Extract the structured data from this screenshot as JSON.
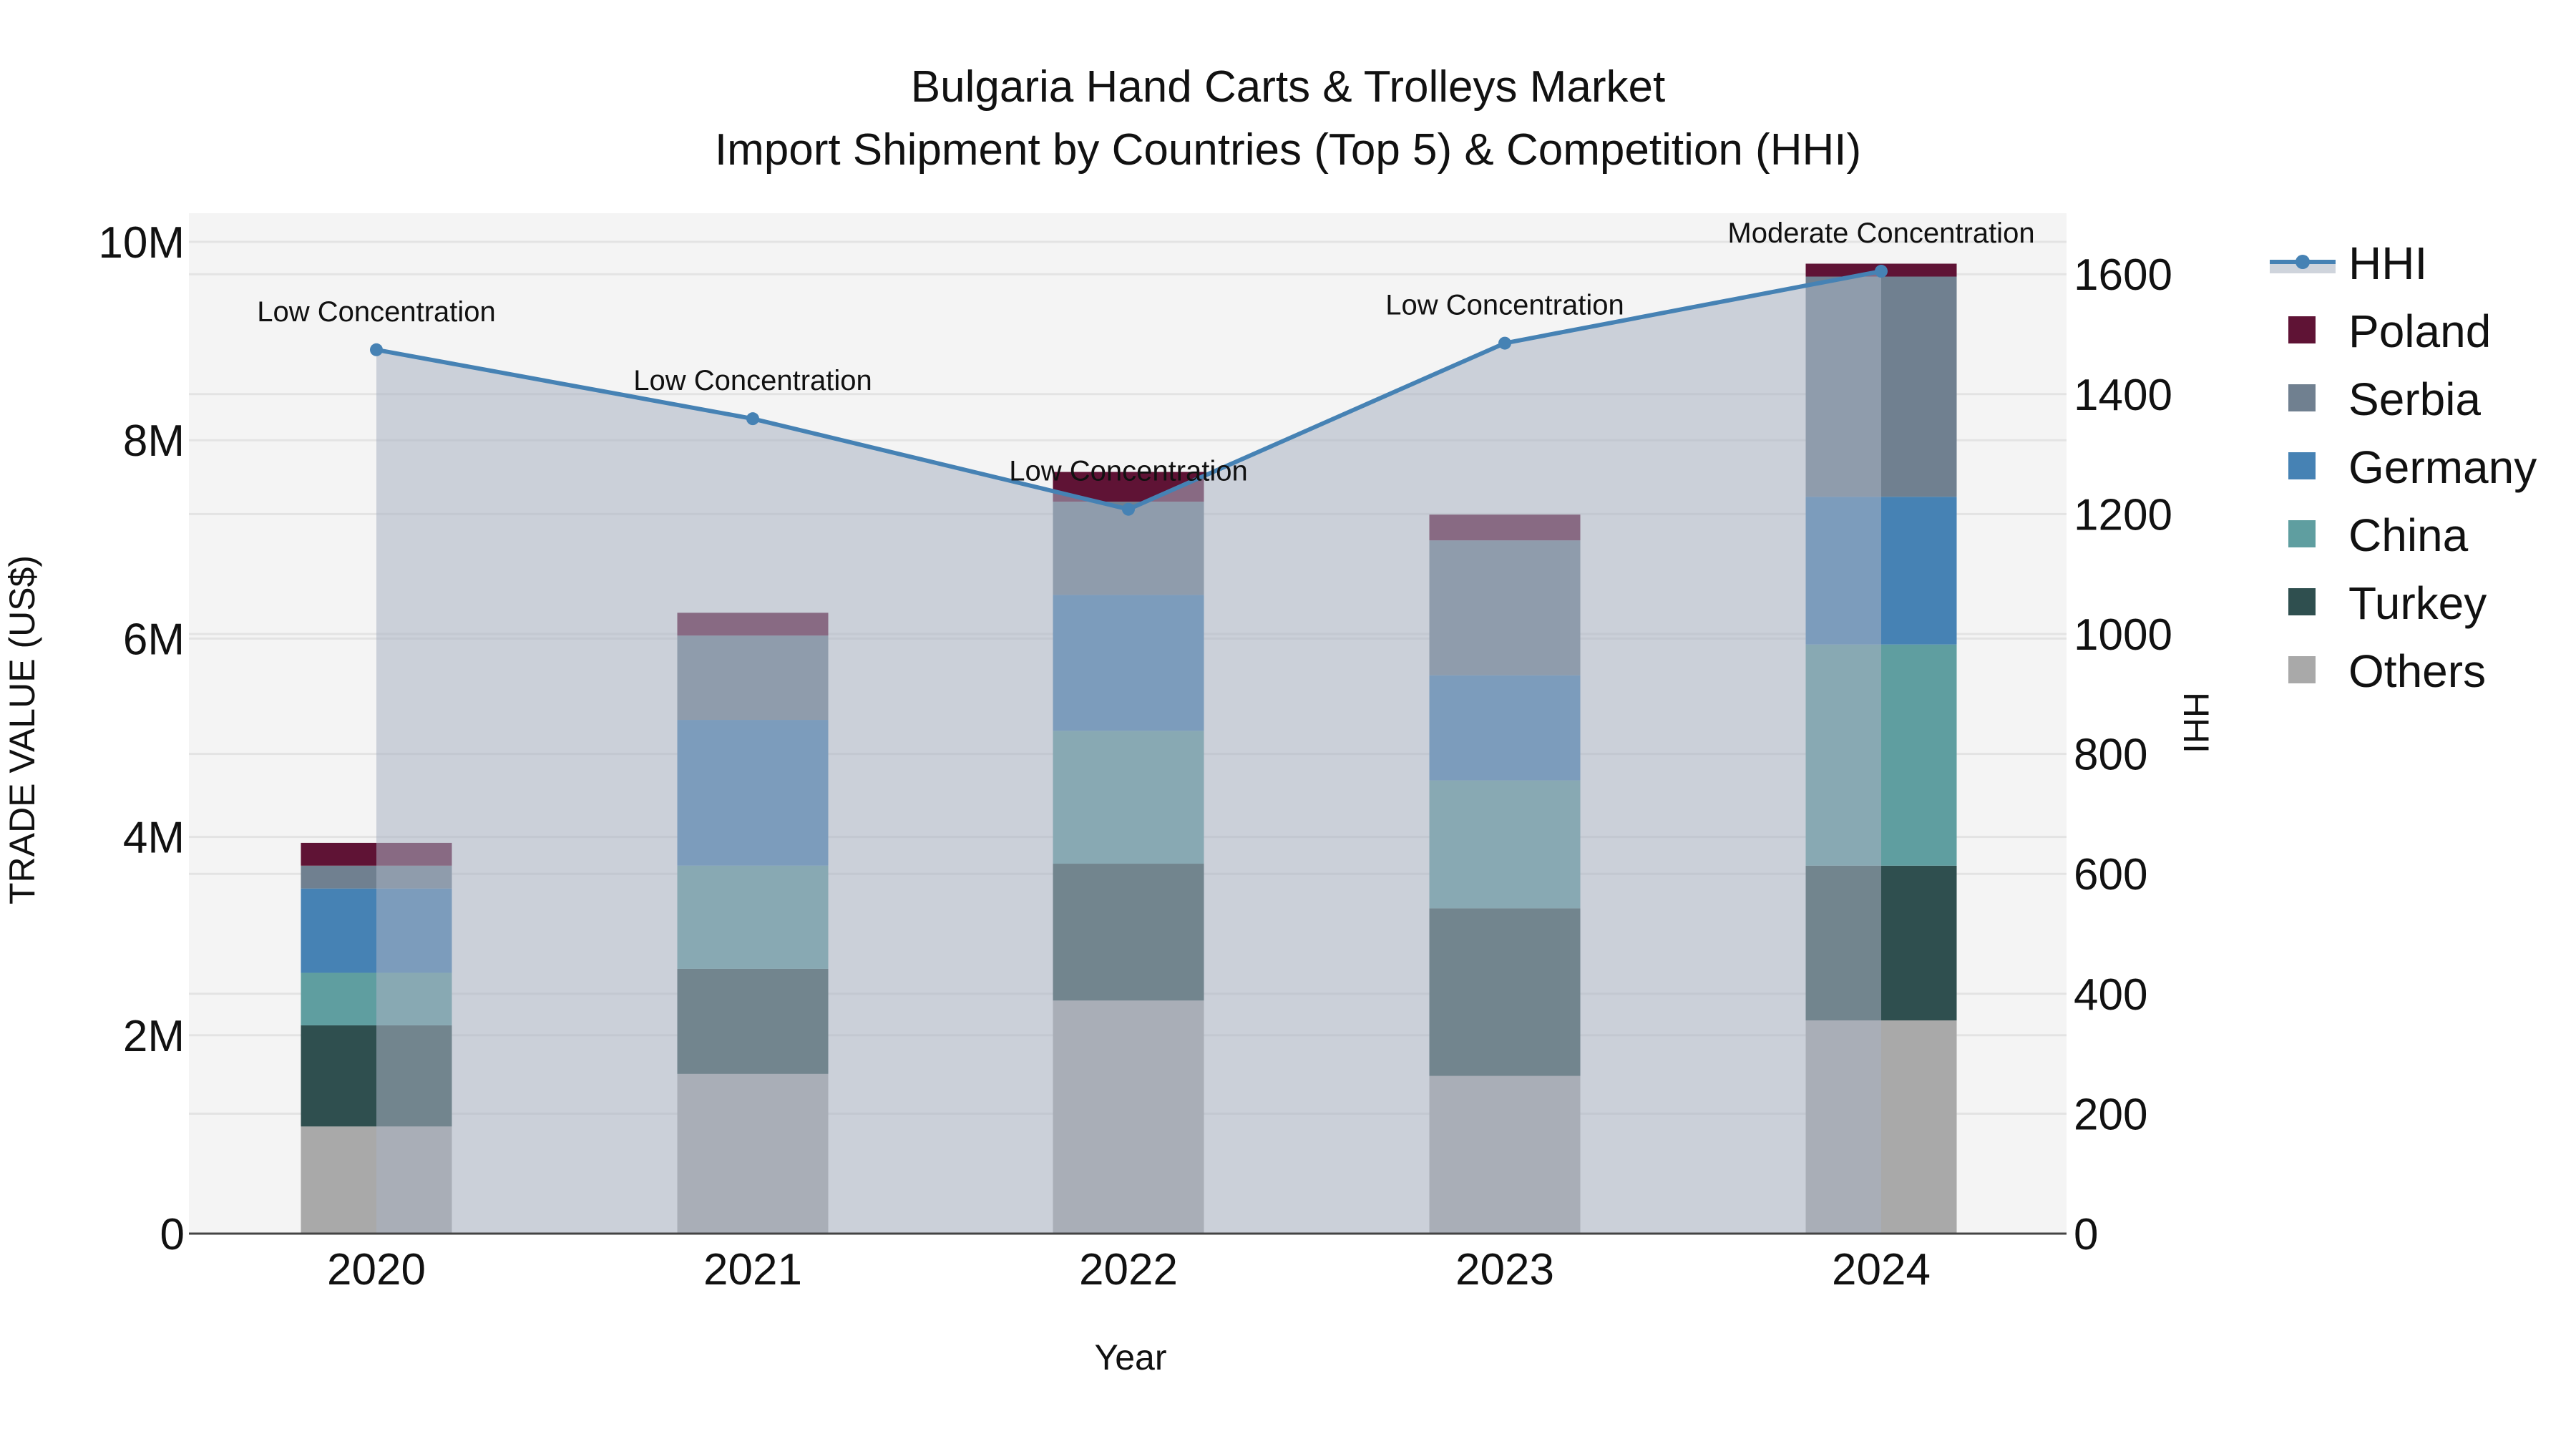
{
  "title": {
    "line1": "Bulgaria Hand Carts & Trolleys Market",
    "line2": "Import Shipment by Countries (Top 5) & Competition (HHI)"
  },
  "axes": {
    "x_label": "Year",
    "y_left_label": "TRADE VALUE (US$)",
    "y_right_label": "HHI",
    "y_left_ticks": [
      "0",
      "2M",
      "4M",
      "6M",
      "8M",
      "10M"
    ],
    "y_right_ticks": [
      "0",
      "200",
      "400",
      "600",
      "800",
      "1000",
      "1200",
      "1400",
      "1600"
    ],
    "x_ticks": [
      "2020",
      "2021",
      "2022",
      "2023",
      "2024"
    ]
  },
  "legend": [
    {
      "name": "HHI",
      "color": "#4682B4",
      "type": "line"
    },
    {
      "name": "Poland",
      "color": "#5F1335",
      "type": "bar"
    },
    {
      "name": "Serbia",
      "color": "#708090",
      "type": "bar"
    },
    {
      "name": "Germany",
      "color": "#4682B4",
      "type": "bar"
    },
    {
      "name": "China",
      "color": "#5F9EA0",
      "type": "bar"
    },
    {
      "name": "Turkey",
      "color": "#2F4F4F",
      "type": "bar"
    },
    {
      "name": "Others",
      "color": "#A9A9A9",
      "type": "bar"
    }
  ],
  "annotations": [
    "Low Concentration",
    "Low Concentration",
    "Low Concentration",
    "Low Concentration",
    "Moderate Concentration"
  ],
  "chart_data": {
    "type": "bar",
    "title": "Bulgaria Hand Carts & Trolleys Market — Import Shipment by Countries (Top 5) & Competition (HHI)",
    "xlabel": "Year",
    "ylabel": "TRADE VALUE (US$)",
    "y2label": "HHI",
    "categories": [
      "2020",
      "2021",
      "2022",
      "2023",
      "2024"
    ],
    "stacked": true,
    "ylim": [
      0,
      10200000
    ],
    "y2lim": [
      0,
      1650
    ],
    "series": [
      {
        "name": "Others",
        "color": "#A9A9A9",
        "values": [
          1080000,
          1610000,
          2350000,
          1590000,
          2150000
        ]
      },
      {
        "name": "Turkey",
        "color": "#2F4F4F",
        "values": [
          1020000,
          1060000,
          1380000,
          1690000,
          1560000
        ]
      },
      {
        "name": "China",
        "color": "#5F9EA0",
        "values": [
          530000,
          1040000,
          1340000,
          1290000,
          2230000
        ]
      },
      {
        "name": "Germany",
        "color": "#4682B4",
        "values": [
          850000,
          1470000,
          1370000,
          1060000,
          1490000
        ]
      },
      {
        "name": "Serbia",
        "color": "#708090",
        "values": [
          230000,
          850000,
          940000,
          1360000,
          2220000
        ]
      },
      {
        "name": "Poland",
        "color": "#5F1335",
        "values": [
          230000,
          230000,
          300000,
          260000,
          130000
        ]
      }
    ],
    "line_series": {
      "name": "HHI",
      "axis": "right",
      "color": "#4682B4",
      "fill": "tozeroy",
      "values": [
        1474,
        1359,
        1208,
        1485,
        1605
      ],
      "labels": [
        "Low Concentration",
        "Low Concentration",
        "Low Concentration",
        "Low Concentration",
        "Moderate Concentration"
      ]
    },
    "grid": true,
    "legend_position": "right"
  }
}
